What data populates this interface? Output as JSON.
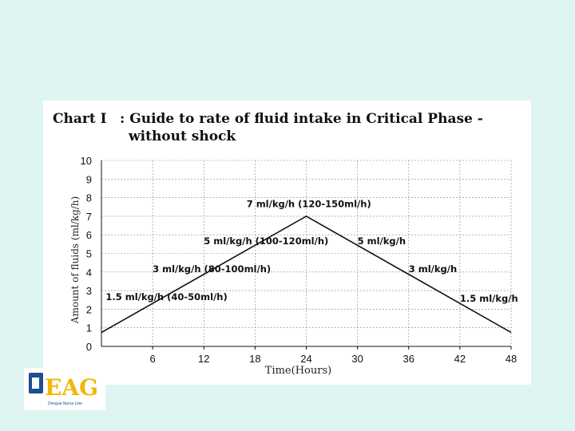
{
  "slide": {
    "title_prefix": "Chart I",
    "title_line1": ": Guide to rate of  fluid intake in Critical Phase -",
    "title_line2": "without shock",
    "logo_text": "EAG",
    "logo_caption": "Dengue Nurse Line"
  },
  "chart_data": {
    "type": "line",
    "title": "Chart I    : Guide to rate of  fluid intake in Critical Phase - without shock",
    "xlabel": "Time(Hours)",
    "ylabel": "Amount of fluids (ml/kg/h)",
    "xlim": [
      0,
      48
    ],
    "ylim": [
      0,
      10
    ],
    "x_ticks": [
      6,
      12,
      18,
      24,
      30,
      36,
      42,
      48
    ],
    "y_ticks": [
      0,
      1,
      2,
      3,
      4,
      5,
      6,
      7,
      8,
      9,
      10
    ],
    "grid": true,
    "series": [
      {
        "x": [
          0,
          24,
          48
        ],
        "y": [
          0.75,
          7,
          0.75
        ]
      }
    ],
    "annotations": [
      {
        "text": "1.5 ml/kg/h (40-50ml/h)",
        "x": 0.5,
        "y": 2.5
      },
      {
        "text": "3 ml/kg/h (80-100ml/h)",
        "x": 6,
        "y": 4.0
      },
      {
        "text": "5 ml/kg/h (100-120ml/h)",
        "x": 12,
        "y": 5.5
      },
      {
        "text": "7 ml/kg/h (120-150ml/h)",
        "x": 17,
        "y": 7.5
      },
      {
        "text": "5 ml/kg/h",
        "x": 30,
        "y": 5.5
      },
      {
        "text": "3 ml/kg/h",
        "x": 36,
        "y": 4.0
      },
      {
        "text": "1.5 ml/kg/h",
        "x": 42,
        "y": 2.4
      }
    ],
    "colors": {
      "line": "#111111",
      "grid": "#888888",
      "axis": "#111111"
    }
  }
}
